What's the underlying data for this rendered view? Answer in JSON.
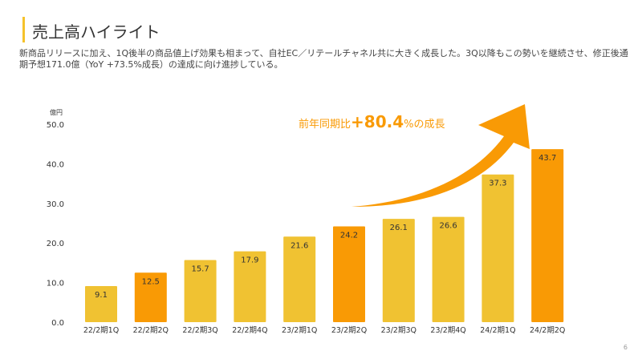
{
  "header": {
    "title": "売上高ハイライト"
  },
  "description": "新商品リリースに加え、1Q後半の商品値上げ効果も相まって、自社EC／リテールチャネル共に大きく成長した。3Q以降もこの勢いを継続させ、修正後通期予想171.0億（YoY +73.5%成長）の達成に向け進捗している。",
  "callout": {
    "prefix": "前年同期比",
    "value": "+80.4",
    "unit": "%",
    "suffix": "の成長"
  },
  "page_number": "6",
  "colors": {
    "yellow": "#F0C232",
    "orange": "#F99A05",
    "accent": "#F5C22B"
  },
  "chart_data": {
    "type": "bar",
    "ylabel": "億円",
    "ylim": [
      0,
      50
    ],
    "yticks": [
      "0.0",
      "10.0",
      "20.0",
      "30.0",
      "40.0",
      "50.0"
    ],
    "categories": [
      "22/2期1Q",
      "22/2期2Q",
      "22/2期3Q",
      "22/2期4Q",
      "23/2期1Q",
      "23/2期2Q",
      "23/2期3Q",
      "23/2期4Q",
      "24/2期1Q",
      "24/2期2Q"
    ],
    "values": [
      9.1,
      12.5,
      15.7,
      17.9,
      21.6,
      24.2,
      26.1,
      26.6,
      37.3,
      43.7
    ],
    "data_labels": [
      "9.1",
      "12.5",
      "15.7",
      "17.9",
      "21.6",
      "24.2",
      "26.1",
      "26.6",
      "37.3",
      "43.7"
    ],
    "highlight": [
      false,
      true,
      false,
      false,
      false,
      true,
      false,
      false,
      false,
      true
    ],
    "grid": false
  }
}
